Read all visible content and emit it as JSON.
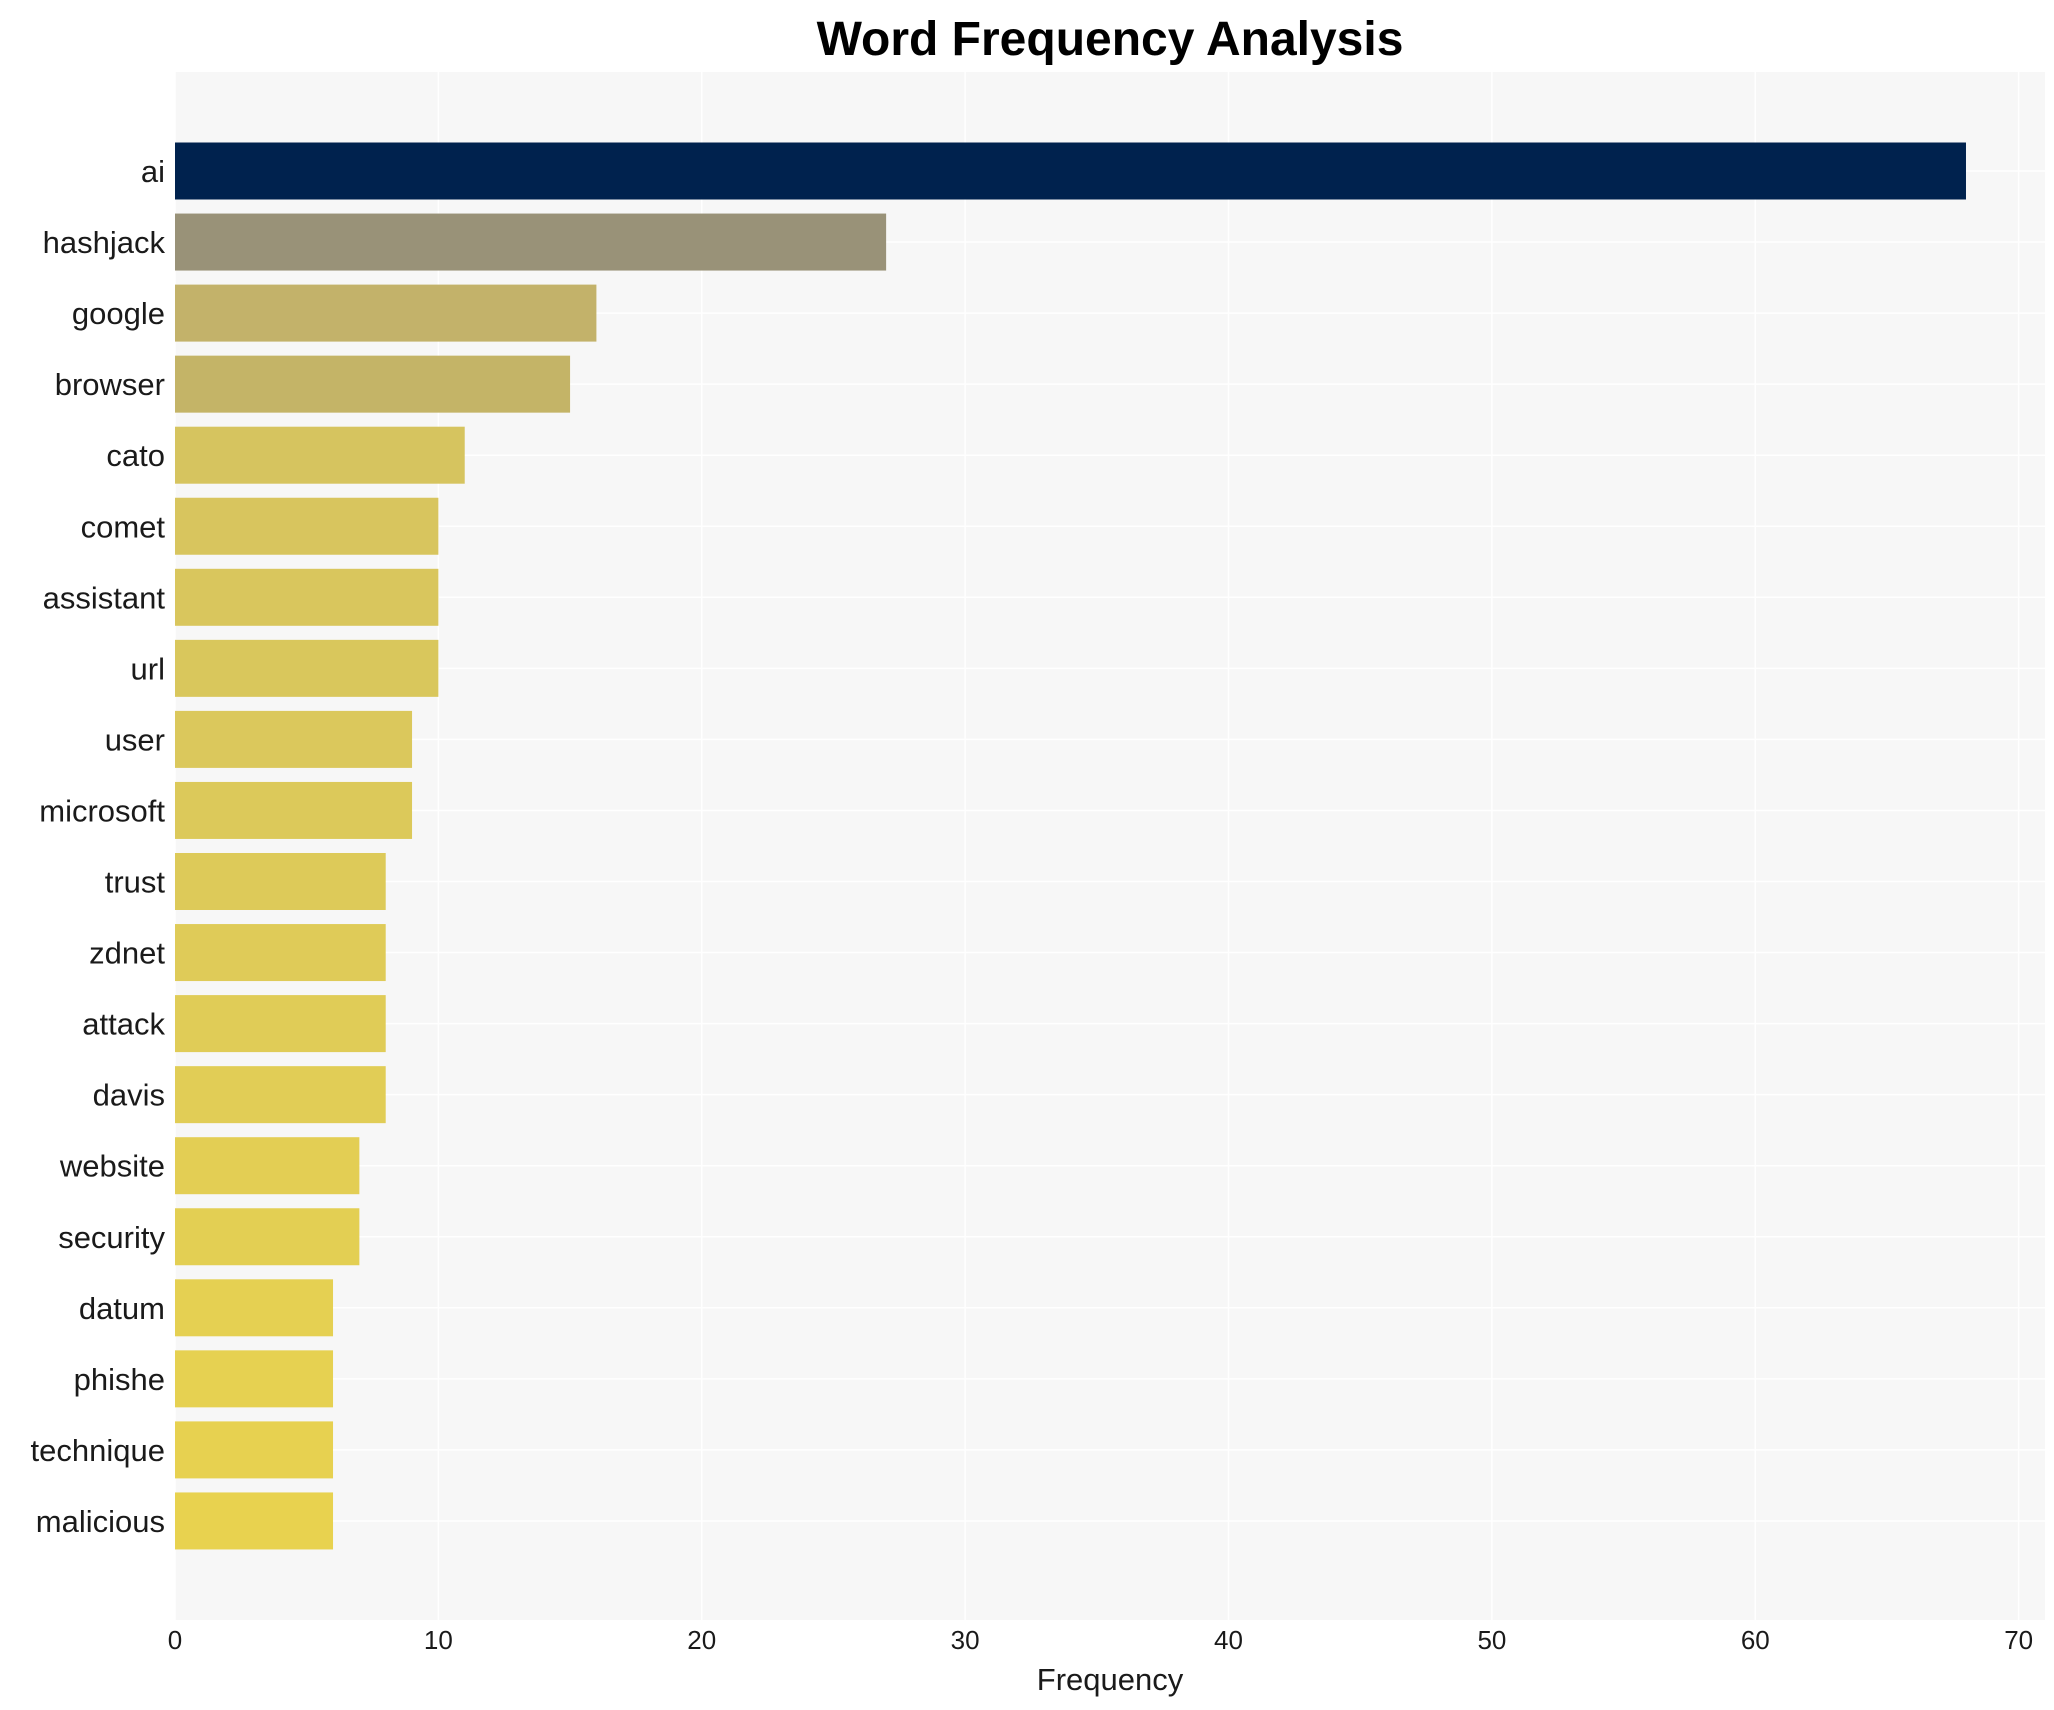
{
  "chart_data": {
    "type": "bar",
    "orientation": "horizontal",
    "title": "Word Frequency Analysis",
    "xlabel": "Frequency",
    "ylabel": "",
    "xlim": [
      0,
      71
    ],
    "xticks": [
      0,
      10,
      20,
      30,
      40,
      50,
      60,
      70
    ],
    "grid": true,
    "legend": "none",
    "colors": {
      "plot_background": "#f7f7f7",
      "grid": "#ffffff",
      "bar_gradient_top": "#00224e",
      "bar_gradient_mid": "#999278",
      "bar_gradient_bottom": "#e8d24f"
    },
    "categories": [
      "ai",
      "hashjack",
      "google",
      "browser",
      "cato",
      "comet",
      "assistant",
      "url",
      "user",
      "microsoft",
      "trust",
      "zdnet",
      "attack",
      "davis",
      "website",
      "security",
      "datum",
      "phishe",
      "technique",
      "malicious"
    ],
    "values": [
      68,
      27,
      16,
      15,
      11,
      10,
      10,
      10,
      9,
      9,
      8,
      8,
      8,
      8,
      7,
      7,
      6,
      6,
      6,
      6
    ],
    "bar_colors": [
      "#00224e",
      "#999278",
      "#c3b26a",
      "#c4b467",
      "#d6c45f",
      "#d8c55e",
      "#d9c65d",
      "#d9c75c",
      "#dbc85c",
      "#dcc95a",
      "#ddca59",
      "#dfcb58",
      "#e0cc57",
      "#e1cd56",
      "#e3ce54",
      "#e3cf53",
      "#e5d052",
      "#e6d151",
      "#e7d150",
      "#e8d24f"
    ]
  }
}
